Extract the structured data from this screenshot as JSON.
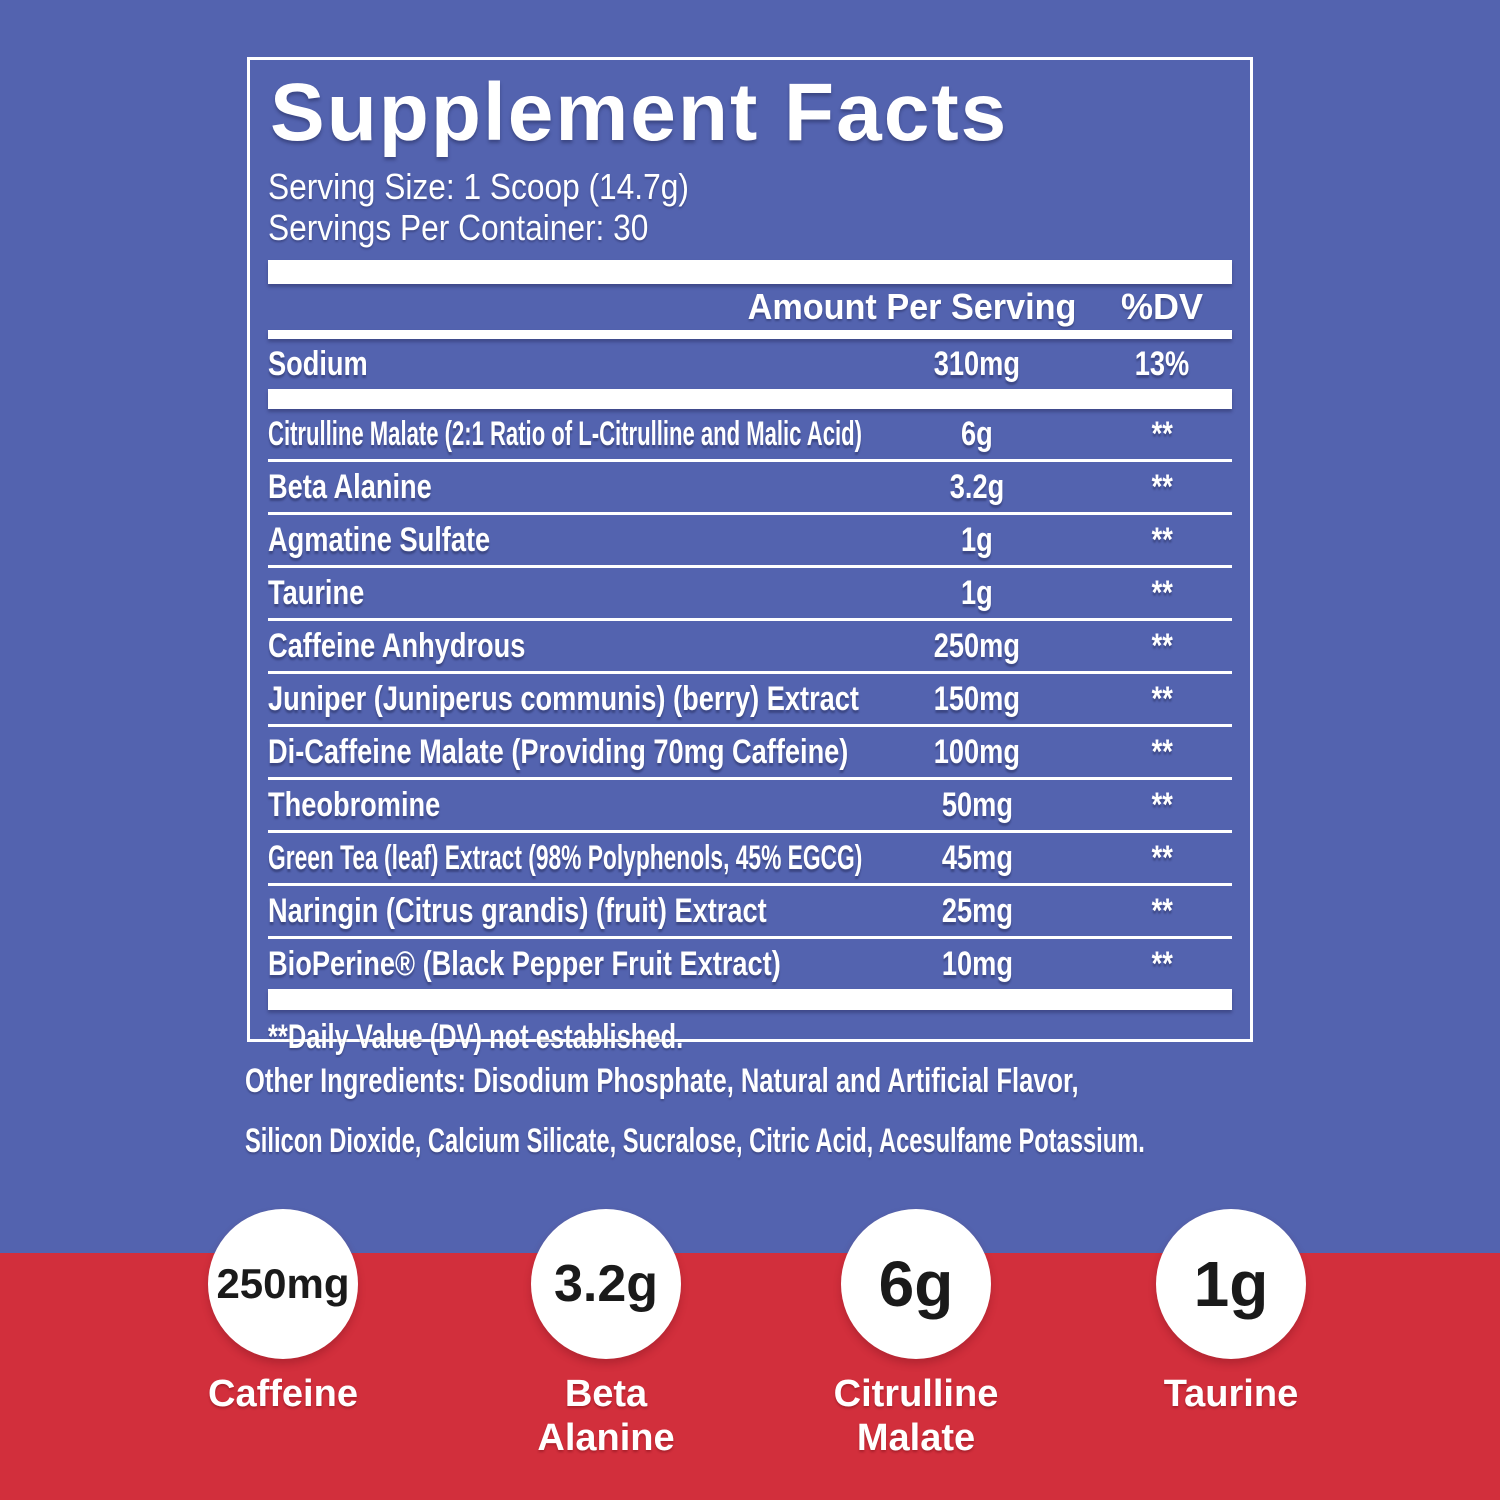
{
  "colors": {
    "background_blue": "#5363af",
    "band_red": "#d22f3c",
    "panel_text": "#ffffff",
    "stat_value_text": "#1a1a1a"
  },
  "panel": {
    "title": "Supplement Facts",
    "serving_size": "Serving Size: 1 Scoop (14.7g)",
    "servings_per_container": "Servings Per Container: 30",
    "header": {
      "amount_label": "Amount Per Serving",
      "dv_label": "%DV"
    },
    "sodium_row": {
      "name": "Sodium",
      "amount": "310mg",
      "dv": "13%"
    },
    "rows": [
      {
        "name": "Citrulline Malate (2:1 Ratio of L-Citrulline and Malic Acid)",
        "amount": "6g",
        "dv": "**"
      },
      {
        "name": "Beta Alanine",
        "amount": "3.2g",
        "dv": "**"
      },
      {
        "name": "Agmatine Sulfate",
        "amount": "1g",
        "dv": "**"
      },
      {
        "name": "Taurine",
        "amount": "1g",
        "dv": "**"
      },
      {
        "name": "Caffeine Anhydrous",
        "amount": "250mg",
        "dv": "**"
      },
      {
        "name": "Juniper (Juniperus communis) (berry) Extract",
        "amount": "150mg",
        "dv": "**"
      },
      {
        "name": "Di-Caffeine Malate (Providing 70mg Caffeine)",
        "amount": "100mg",
        "dv": "**"
      },
      {
        "name": "Theobromine",
        "amount": "50mg",
        "dv": "**"
      },
      {
        "name": "Green Tea (leaf) Extract (98% Polyphenols, 45% EGCG)",
        "amount": "45mg",
        "dv": "**"
      },
      {
        "name": "Naringin (Citrus grandis) (fruit) Extract",
        "amount": "25mg",
        "dv": "**"
      },
      {
        "name": "BioPerine® (Black Pepper Fruit Extract)",
        "amount": "10mg",
        "dv": "**"
      }
    ],
    "footnote": "**Daily Value (DV) not established."
  },
  "other_ingredients": {
    "lines": [
      "Other Ingredients: Disodium Phosphate, Natural and Artificial Flavor,",
      "Silicon Dioxide, Calcium Silicate, Sucralose, Citric Acid, Acesulfame Potassium."
    ]
  },
  "stats": [
    {
      "value": "250mg",
      "label_lines": [
        "Caffeine"
      ]
    },
    {
      "value": "3.2g",
      "label_lines": [
        "Beta",
        "Alanine"
      ]
    },
    {
      "value": "6g",
      "label_lines": [
        "Citrulline",
        "Malate"
      ]
    },
    {
      "value": "1g",
      "label_lines": [
        "Taurine"
      ]
    }
  ]
}
